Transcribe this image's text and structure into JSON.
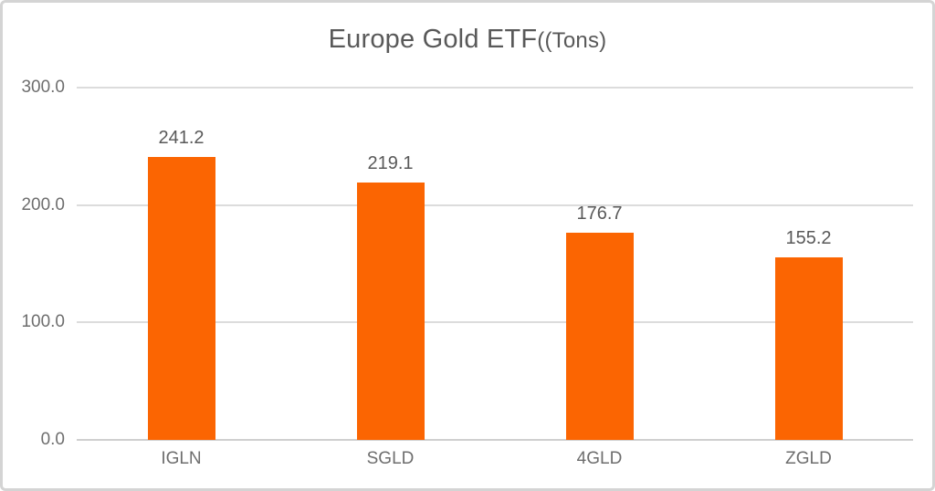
{
  "chart_data": {
    "type": "bar",
    "title": "Europe Gold ETF((Tons)",
    "title_main": "Europe Gold ETF",
    "title_sub": "((Tons)",
    "categories": [
      "IGLN",
      "SGLD",
      "4GLD",
      "ZGLD"
    ],
    "values": [
      241.2,
      219.1,
      176.7,
      155.2
    ],
    "value_labels": [
      "241.2",
      "219.1",
      "176.7",
      "155.2"
    ],
    "xlabel": "",
    "ylabel": "",
    "ylim": [
      0,
      300
    ],
    "yticks": [
      0,
      100,
      200,
      300
    ],
    "ytick_labels": [
      "0.0",
      "100.0",
      "200.0",
      "300.0"
    ],
    "grid": true,
    "legend": "none",
    "bar_color": "#fb6502",
    "gridline_color": "#dcdcdc",
    "axis_line_color": "#cfcfcf",
    "text_color": "#595959",
    "tick_text_color": "#6e6e6e"
  }
}
